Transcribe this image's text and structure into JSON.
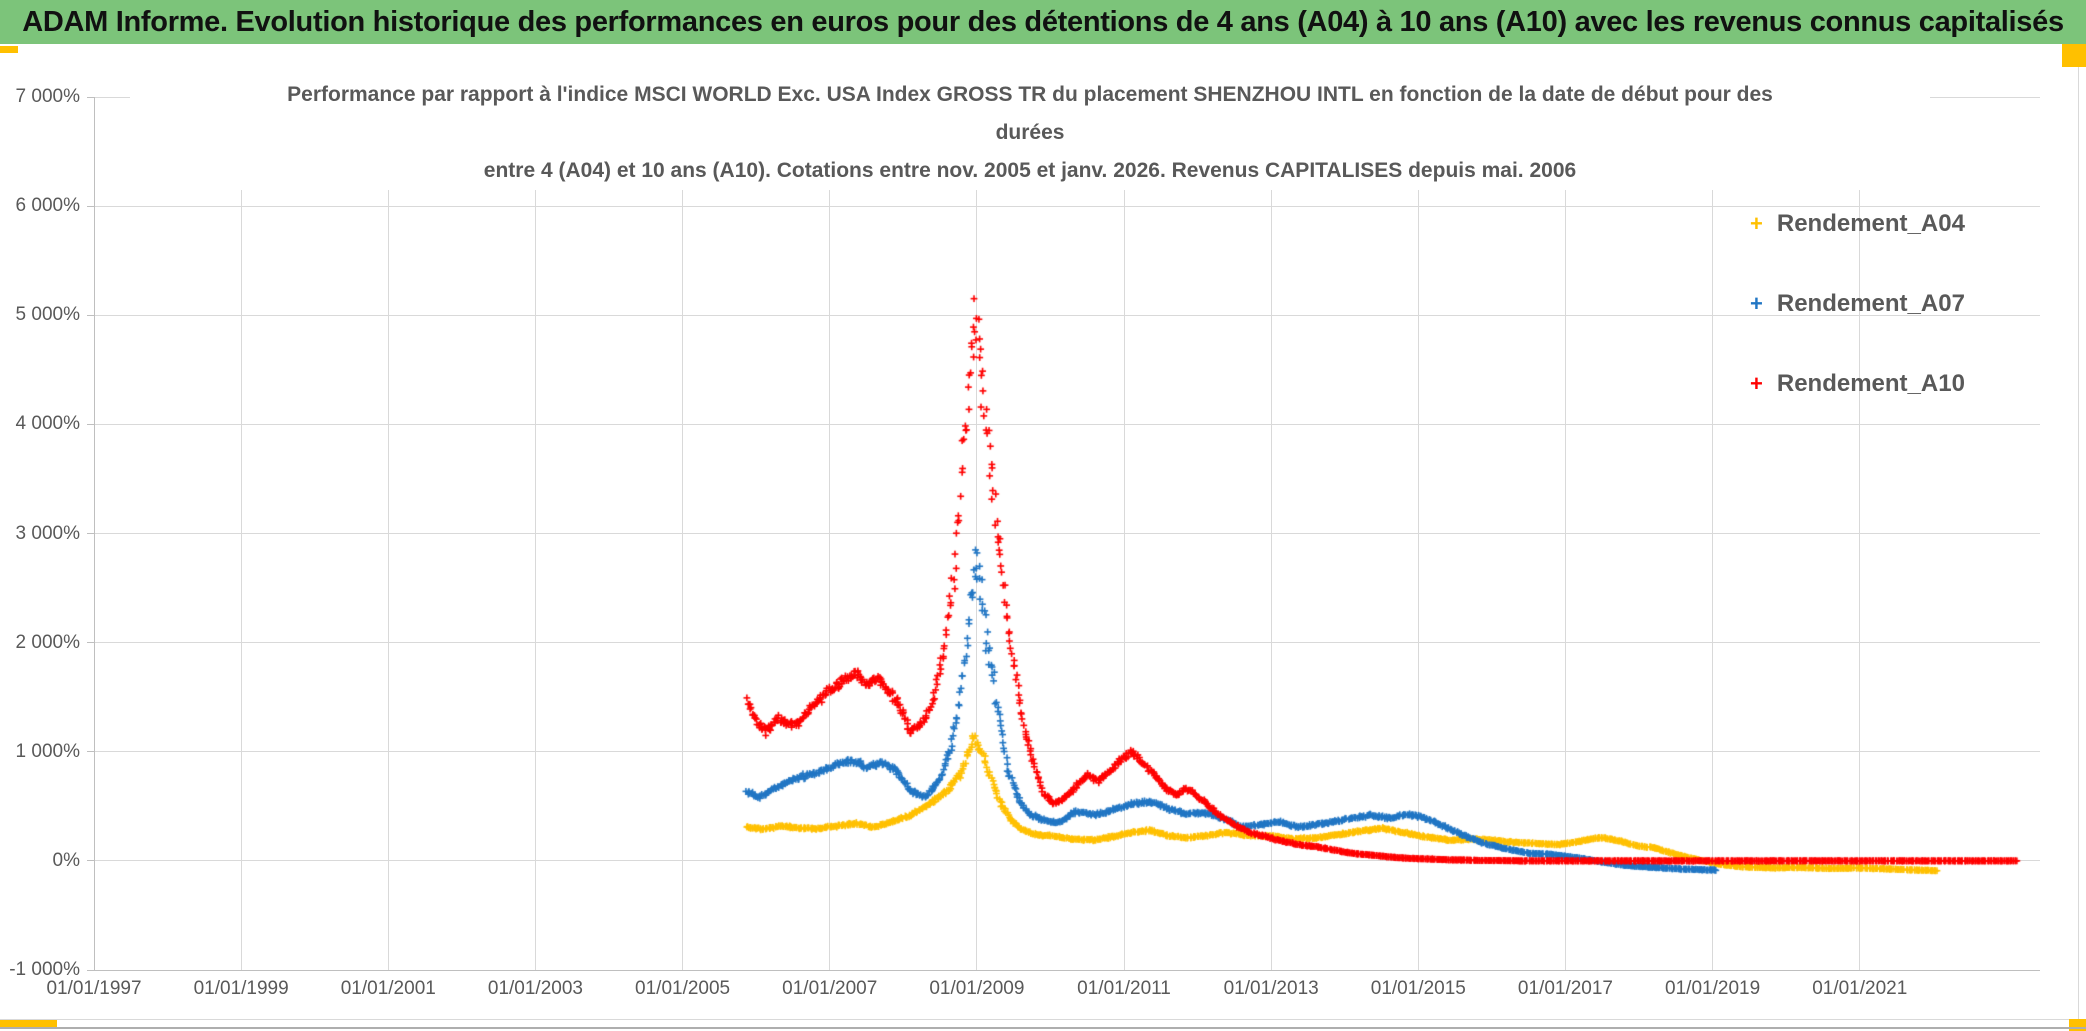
{
  "header": {
    "title": "ADAM Informe. Evolution historique des performances en euros pour des détentions de 4 ans (A04) à 10 ans (A10) avec les revenus connus capitalisés",
    "bg_color": "#7cc47a",
    "accent_color": "#ffc000"
  },
  "chart_data": {
    "type": "scatter",
    "title_lines": [
      "Performance par rapport à l'indice MSCI WORLD Exc. USA Index GROSS TR  du placement SHENZHOU INTL en fonction de la date de début pour des",
      "durées",
      "entre 4 (A04) et 10 ans (A10). Cotations entre nov. 2005 et janv. 2026. Revenus CAPITALISES depuis mai. 2006"
    ],
    "marker": "plus",
    "grid": "on",
    "legend_position": "right",
    "legend": [
      {
        "name": "Rendement_A04",
        "color": "#ffc000"
      },
      {
        "name": "Rendement_A07",
        "color": "#2176c4"
      },
      {
        "name": "Rendement_A10",
        "color": "#ff0000"
      }
    ],
    "y_axis": {
      "max": 7000,
      "min": -1000,
      "unit": "%",
      "ticks": [
        {
          "label": "7 000%",
          "value": 7000
        },
        {
          "label": "6 000%",
          "value": 6000
        },
        {
          "label": "5 000%",
          "value": 5000
        },
        {
          "label": "4 000%",
          "value": 4000
        },
        {
          "label": "3 000%",
          "value": 3000
        },
        {
          "label": "2 000%",
          "value": 2000
        },
        {
          "label": "1 000%",
          "value": 1000
        },
        {
          "label": "0%",
          "value": 0
        },
        {
          "label": "-1 000%",
          "value": -1000
        }
      ]
    },
    "x_axis": {
      "start_year": 1997,
      "end_year": 2023.45,
      "ticks": [
        {
          "label": "01/01/1997",
          "year": 1997
        },
        {
          "label": "01/01/1999",
          "year": 1999
        },
        {
          "label": "01/01/2001",
          "year": 2001
        },
        {
          "label": "01/01/2003",
          "year": 2003
        },
        {
          "label": "01/01/2005",
          "year": 2005
        },
        {
          "label": "01/01/2007",
          "year": 2007
        },
        {
          "label": "01/01/2009",
          "year": 2009
        },
        {
          "label": "01/01/2011",
          "year": 2011
        },
        {
          "label": "01/01/2013",
          "year": 2013
        },
        {
          "label": "01/01/2015",
          "year": 2015
        },
        {
          "label": "01/01/2017",
          "year": 2017
        },
        {
          "label": "01/01/2019",
          "year": 2019
        },
        {
          "label": "01/01/2021",
          "year": 2021
        }
      ]
    },
    "series": [
      {
        "name": "Rendement_A04",
        "color": "#ffc000",
        "seed": 11,
        "spike": [
          2008.75,
          2009.2,
          1.6
        ],
        "keypoints": [
          [
            2005.87,
            310
          ],
          [
            2006.1,
            290
          ],
          [
            2006.35,
            320
          ],
          [
            2006.6,
            300
          ],
          [
            2006.85,
            295
          ],
          [
            2007.1,
            320
          ],
          [
            2007.35,
            345
          ],
          [
            2007.6,
            310
          ],
          [
            2007.85,
            360
          ],
          [
            2008.1,
            420
          ],
          [
            2008.35,
            520
          ],
          [
            2008.6,
            640
          ],
          [
            2008.8,
            820
          ],
          [
            2008.97,
            1150
          ],
          [
            2009.05,
            1020
          ],
          [
            2009.15,
            840
          ],
          [
            2009.3,
            560
          ],
          [
            2009.45,
            380
          ],
          [
            2009.6,
            290
          ],
          [
            2009.8,
            240
          ],
          [
            2010.0,
            230
          ],
          [
            2010.3,
            200
          ],
          [
            2010.6,
            190
          ],
          [
            2010.9,
            230
          ],
          [
            2011.1,
            260
          ],
          [
            2011.35,
            280
          ],
          [
            2011.6,
            230
          ],
          [
            2011.85,
            210
          ],
          [
            2012.1,
            230
          ],
          [
            2012.4,
            260
          ],
          [
            2012.7,
            230
          ],
          [
            2013.0,
            230
          ],
          [
            2013.3,
            200
          ],
          [
            2013.6,
            210
          ],
          [
            2013.9,
            240
          ],
          [
            2014.2,
            270
          ],
          [
            2014.5,
            300
          ],
          [
            2014.8,
            260
          ],
          [
            2015.1,
            220
          ],
          [
            2015.4,
            190
          ],
          [
            2015.7,
            200
          ],
          [
            2016.0,
            190
          ],
          [
            2016.3,
            170
          ],
          [
            2016.6,
            160
          ],
          [
            2016.9,
            150
          ],
          [
            2017.2,
            180
          ],
          [
            2017.45,
            215
          ],
          [
            2017.7,
            190
          ],
          [
            2017.95,
            140
          ],
          [
            2018.2,
            120
          ],
          [
            2018.5,
            60
          ],
          [
            2018.8,
            10
          ],
          [
            2019.1,
            -30
          ],
          [
            2019.4,
            -55
          ],
          [
            2019.8,
            -65
          ],
          [
            2020.2,
            -60
          ],
          [
            2020.6,
            -70
          ],
          [
            2021.0,
            -65
          ],
          [
            2021.4,
            -75
          ],
          [
            2021.8,
            -85
          ],
          [
            2022.05,
            -90
          ]
        ]
      },
      {
        "name": "Rendement_A07",
        "color": "#2176c4",
        "seed": 22,
        "spike": [
          2008.7,
          2009.3,
          3.0
        ],
        "keypoints": [
          [
            2005.87,
            640
          ],
          [
            2006.05,
            590
          ],
          [
            2006.3,
            680
          ],
          [
            2006.55,
            760
          ],
          [
            2006.8,
            800
          ],
          [
            2007.05,
            870
          ],
          [
            2007.3,
            920
          ],
          [
            2007.5,
            860
          ],
          [
            2007.7,
            900
          ],
          [
            2007.9,
            830
          ],
          [
            2008.1,
            640
          ],
          [
            2008.3,
            580
          ],
          [
            2008.5,
            750
          ],
          [
            2008.65,
            1050
          ],
          [
            2008.8,
            1650
          ],
          [
            2008.9,
            2250
          ],
          [
            2008.97,
            2750
          ],
          [
            2009.05,
            2450
          ],
          [
            2009.12,
            2050
          ],
          [
            2009.2,
            1750
          ],
          [
            2009.3,
            1350
          ],
          [
            2009.42,
            850
          ],
          [
            2009.55,
            580
          ],
          [
            2009.7,
            430
          ],
          [
            2009.9,
            380
          ],
          [
            2010.1,
            350
          ],
          [
            2010.35,
            450
          ],
          [
            2010.6,
            420
          ],
          [
            2010.85,
            470
          ],
          [
            2011.1,
            520
          ],
          [
            2011.35,
            545
          ],
          [
            2011.6,
            480
          ],
          [
            2011.85,
            430
          ],
          [
            2012.1,
            440
          ],
          [
            2012.35,
            390
          ],
          [
            2012.6,
            310
          ],
          [
            2012.85,
            330
          ],
          [
            2013.1,
            360
          ],
          [
            2013.35,
            310
          ],
          [
            2013.6,
            330
          ],
          [
            2013.85,
            360
          ],
          [
            2014.1,
            390
          ],
          [
            2014.35,
            420
          ],
          [
            2014.6,
            390
          ],
          [
            2014.85,
            430
          ],
          [
            2015.05,
            400
          ],
          [
            2015.3,
            330
          ],
          [
            2015.6,
            240
          ],
          [
            2015.9,
            160
          ],
          [
            2016.2,
            110
          ],
          [
            2016.5,
            70
          ],
          [
            2016.8,
            60
          ],
          [
            2017.2,
            25
          ],
          [
            2017.5,
            -10
          ],
          [
            2017.8,
            -40
          ],
          [
            2018.2,
            -60
          ],
          [
            2018.6,
            -75
          ],
          [
            2019.05,
            -85
          ]
        ]
      },
      {
        "name": "Rendement_A10",
        "color": "#ff0000",
        "seed": 33,
        "spike": [
          2008.62,
          2009.3,
          3.0
        ],
        "keypoints": [
          [
            2005.87,
            1480
          ],
          [
            2006.0,
            1270
          ],
          [
            2006.15,
            1180
          ],
          [
            2006.3,
            1300
          ],
          [
            2006.45,
            1250
          ],
          [
            2006.6,
            1280
          ],
          [
            2006.8,
            1450
          ],
          [
            2007.0,
            1560
          ],
          [
            2007.2,
            1660
          ],
          [
            2007.35,
            1720
          ],
          [
            2007.5,
            1600
          ],
          [
            2007.65,
            1680
          ],
          [
            2007.8,
            1550
          ],
          [
            2007.95,
            1420
          ],
          [
            2008.1,
            1180
          ],
          [
            2008.25,
            1260
          ],
          [
            2008.4,
            1450
          ],
          [
            2008.55,
            1900
          ],
          [
            2008.7,
            2700
          ],
          [
            2008.8,
            3600
          ],
          [
            2008.9,
            4400
          ],
          [
            2008.97,
            5100
          ],
          [
            2009.03,
            4750
          ],
          [
            2009.1,
            4250
          ],
          [
            2009.18,
            3700
          ],
          [
            2009.27,
            3100
          ],
          [
            2009.35,
            2600
          ],
          [
            2009.45,
            2050
          ],
          [
            2009.55,
            1600
          ],
          [
            2009.65,
            1200
          ],
          [
            2009.78,
            880
          ],
          [
            2009.9,
            620
          ],
          [
            2010.05,
            520
          ],
          [
            2010.2,
            580
          ],
          [
            2010.35,
            680
          ],
          [
            2010.5,
            790
          ],
          [
            2010.65,
            730
          ],
          [
            2010.8,
            820
          ],
          [
            2010.95,
            920
          ],
          [
            2011.1,
            1000
          ],
          [
            2011.25,
            900
          ],
          [
            2011.4,
            800
          ],
          [
            2011.55,
            680
          ],
          [
            2011.7,
            600
          ],
          [
            2011.85,
            660
          ],
          [
            2012.0,
            600
          ],
          [
            2012.15,
            500
          ],
          [
            2012.3,
            420
          ],
          [
            2012.5,
            330
          ],
          [
            2012.7,
            260
          ],
          [
            2012.9,
            230
          ],
          [
            2013.1,
            190
          ],
          [
            2013.35,
            150
          ],
          [
            2013.6,
            130
          ],
          [
            2013.85,
            100
          ],
          [
            2014.1,
            70
          ],
          [
            2014.4,
            50
          ],
          [
            2014.7,
            30
          ],
          [
            2015.0,
            20
          ],
          [
            2015.4,
            10
          ],
          [
            2015.8,
            5
          ],
          [
            2016.5,
            0
          ],
          [
            2018.0,
            0
          ],
          [
            2020.0,
            0
          ],
          [
            2022.0,
            0
          ],
          [
            2023.13,
            0
          ]
        ]
      }
    ],
    "render": {
      "sample_step": 0.012,
      "jitter_base": 2.5,
      "jitter_scale": 0.03,
      "x_jitter": 1.2
    }
  },
  "colors": {
    "gridline": "#d9d9d9",
    "axis_line": "#bfbfbf",
    "axis_text": "#595959",
    "title_text": "#595959"
  }
}
